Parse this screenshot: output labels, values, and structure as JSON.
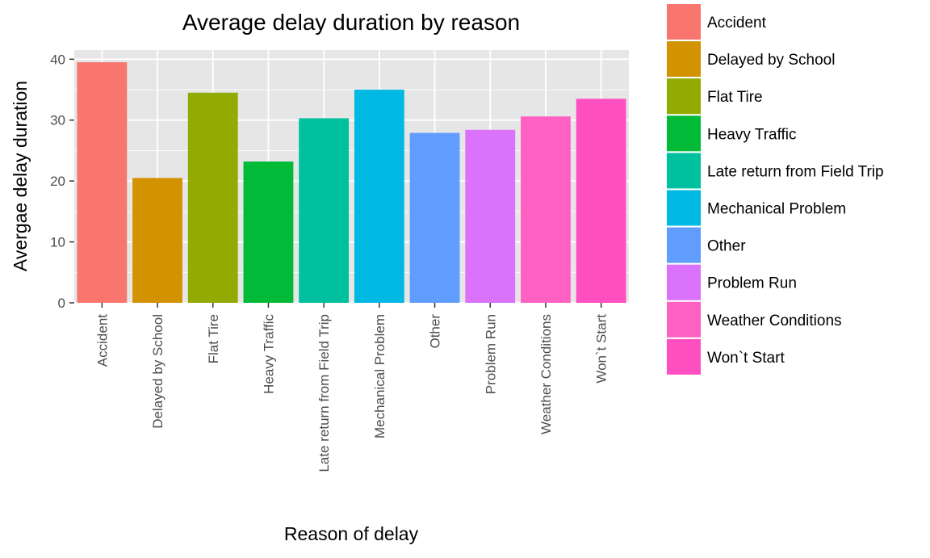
{
  "chart_data": {
    "type": "bar",
    "title": "Average delay duration by reason",
    "xlabel": "Reason of delay",
    "ylabel": "Avergae delay duration",
    "categories": [
      "Accident",
      "Delayed by School",
      "Flat Tire",
      "Heavy Traffic",
      "Late return from Field Trip",
      "Mechanical Problem",
      "Other",
      "Problem Run",
      "Weather Conditions",
      "Won`t Start"
    ],
    "values": [
      39.5,
      20.5,
      34.5,
      23.2,
      30.3,
      35.0,
      27.9,
      28.4,
      30.6,
      33.5
    ],
    "colors": [
      "#F8766D",
      "#D39200",
      "#93AA00",
      "#00BA38",
      "#00C19F",
      "#00B9E3",
      "#619CFF",
      "#DB72FB",
      "#FF61C3",
      "#FF4FC0"
    ],
    "ylim": [
      0,
      41.5
    ],
    "yticks": [
      0,
      10,
      20,
      30,
      40
    ],
    "grid": true,
    "legend": "right",
    "legend_entries": [
      "Accident",
      "Delayed by School",
      "Flat Tire",
      "Heavy Traffic",
      "Late return from Field Trip",
      "Mechanical Problem",
      "Other",
      "Problem Run",
      "Weather Conditions",
      "Won`t Start"
    ],
    "panel_background": "#E6E6E6",
    "grid_color": "#FFFFFF"
  }
}
